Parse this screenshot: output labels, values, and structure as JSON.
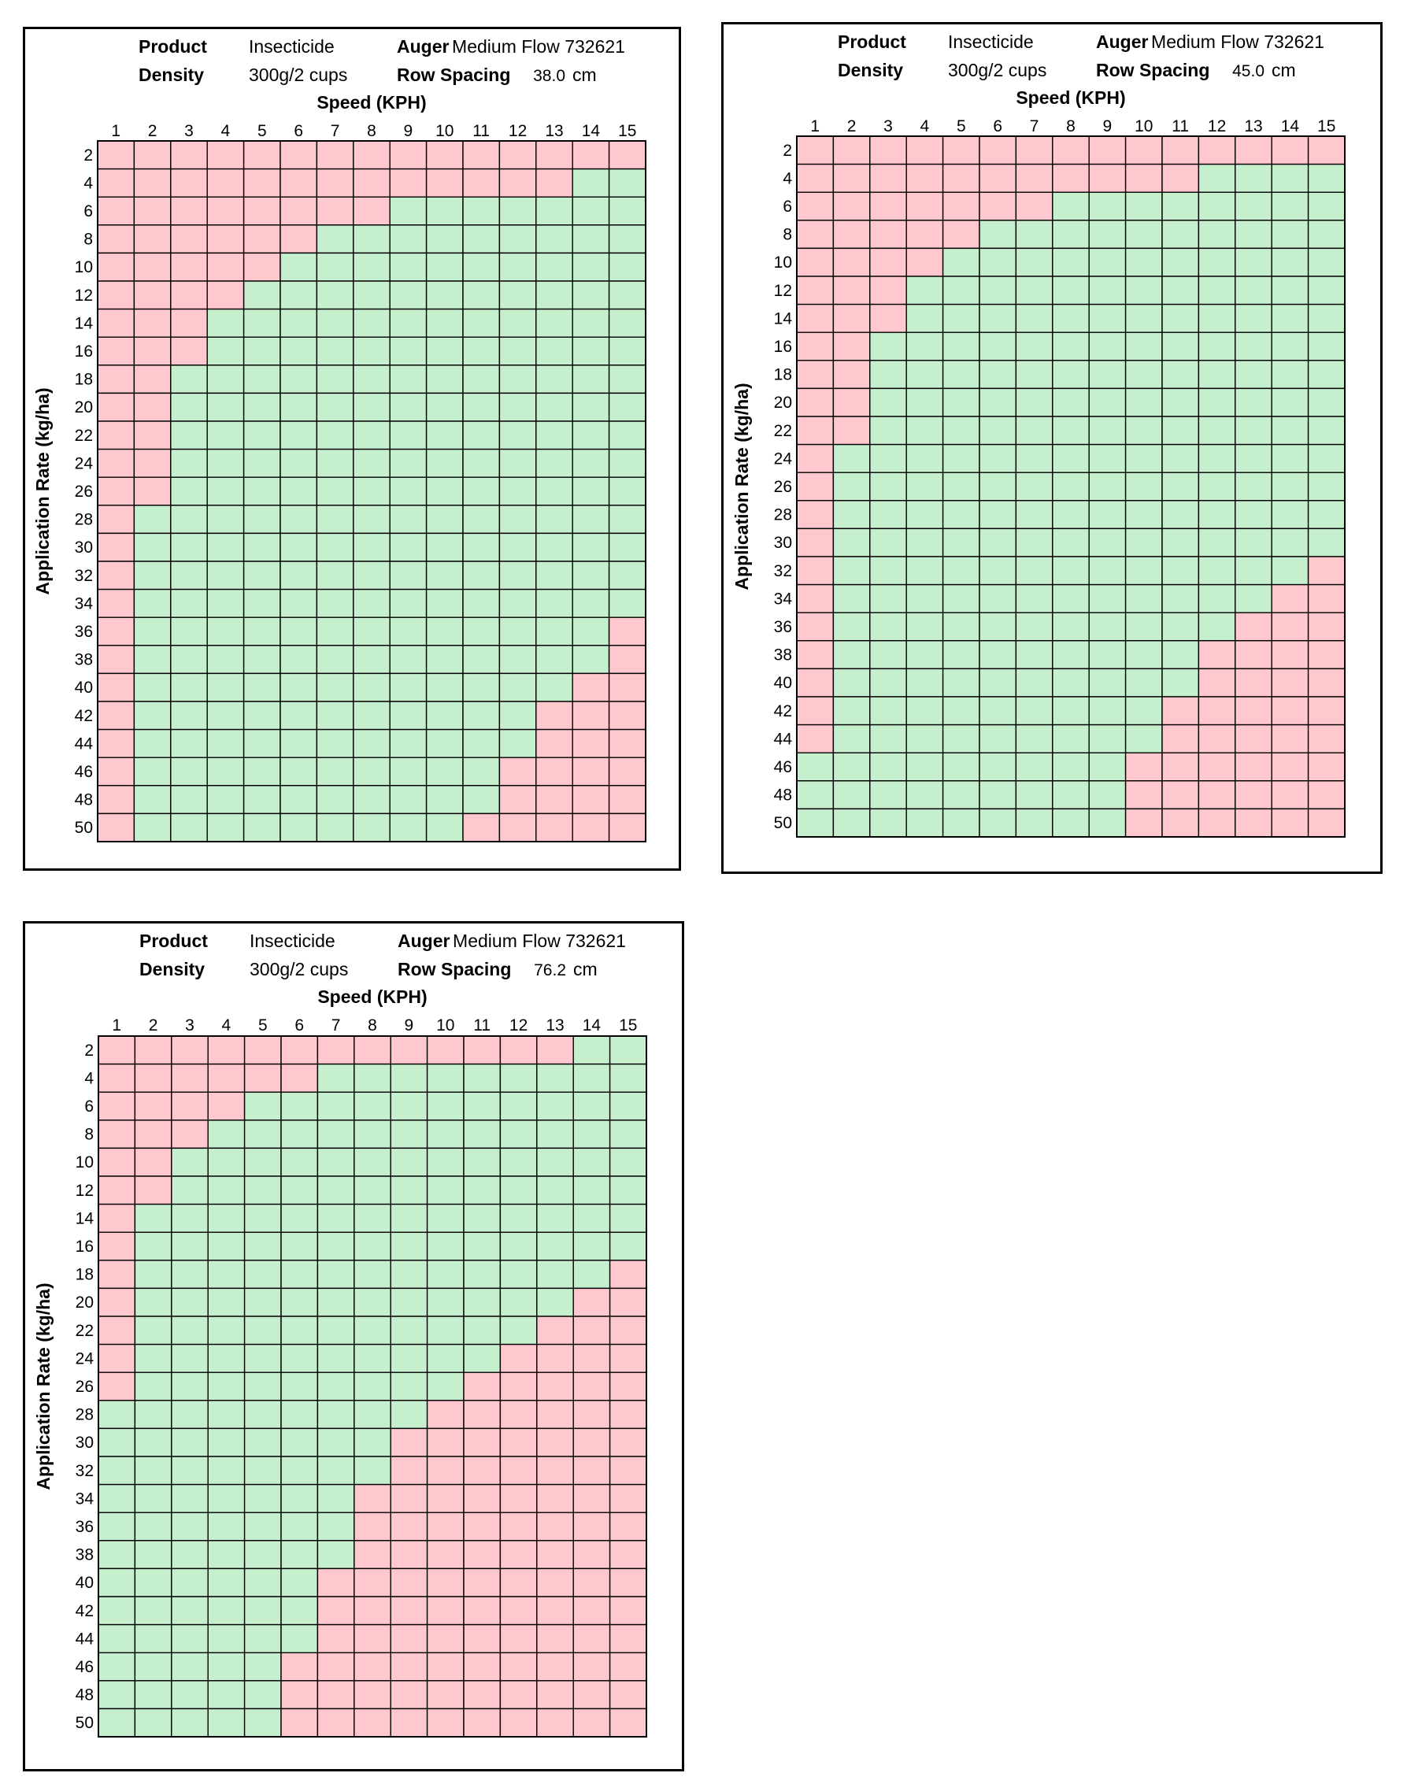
{
  "colors": {
    "green": "#c6efce",
    "red": "#ffc7ce",
    "grid": "#000000"
  },
  "legend_note": "",
  "chart_data": [
    {
      "type": "heatmap",
      "header": {
        "product_label": "Product",
        "product_value": "Insecticide",
        "density_label": "Density",
        "density_value": "300g/2 cups",
        "auger_label": "Auger",
        "auger_value": "Medium Flow 732621",
        "row_spacing_label": "Row Spacing",
        "row_spacing_value": "38.0",
        "row_spacing_unit": "cm"
      },
      "xlabel": "Speed (KPH)",
      "ylabel": "Application Rate (kg/ha)",
      "x": [
        1,
        2,
        3,
        4,
        5,
        6,
        7,
        8,
        9,
        10,
        11,
        12,
        13,
        14,
        15
      ],
      "y": [
        2,
        4,
        6,
        8,
        10,
        12,
        14,
        16,
        18,
        20,
        22,
        24,
        26,
        28,
        30,
        32,
        34,
        36,
        38,
        40,
        42,
        44,
        46,
        48,
        50
      ],
      "cell_status_key": "G = within range (green), R = out of range (red)",
      "rows": [
        "RRRRRRRRRRRRRRR",
        "RRRRRRRRRRRRRGG",
        "RRRRRRRRGGGGGGG",
        "RRRRRRGGGGGGGGG",
        "RRRRRGGGGGGGGGG",
        "RRRRGGGGGGGGGGG",
        "RRRGGGGGGGGGGGG",
        "RRRGGGGGGGGGGGG",
        "RRGGGGGGGGGGGGG",
        "RRGGGGGGGGGGGGG",
        "RRGGGGGGGGGGGGG",
        "RRGGGGGGGGGGGGG",
        "RRGGGGGGGGGGGGG",
        "RGGGGGGGGGGGGGG",
        "RGGGGGGGGGGGGGG",
        "RGGGGGGGGGGGGGG",
        "RGGGGGGGGGGGGGG",
        "RGGGGGGGGGGGGGR",
        "RGGGGGGGGGGGGGR",
        "RGGGGGGGGGGGGRR",
        "RGGGGGGGGGGGRRR",
        "RGGGGGGGGGGGRRR",
        "RGGGGGGGGGGRRRR",
        "RGGGGGGGGGGRRRR",
        "RGGGGGGGGGRRRRR"
      ]
    },
    {
      "type": "heatmap",
      "header": {
        "product_label": "Product",
        "product_value": "Insecticide",
        "density_label": "Density",
        "density_value": "300g/2 cups",
        "auger_label": "Auger",
        "auger_value": "Medium Flow 732621",
        "row_spacing_label": "Row Spacing",
        "row_spacing_value": "45.0",
        "row_spacing_unit": "cm"
      },
      "xlabel": "Speed (KPH)",
      "ylabel": "Application Rate (kg/ha)",
      "x": [
        1,
        2,
        3,
        4,
        5,
        6,
        7,
        8,
        9,
        10,
        11,
        12,
        13,
        14,
        15
      ],
      "y": [
        2,
        4,
        6,
        8,
        10,
        12,
        14,
        16,
        18,
        20,
        22,
        24,
        26,
        28,
        30,
        32,
        34,
        36,
        38,
        40,
        42,
        44,
        46,
        48,
        50
      ],
      "cell_status_key": "G = within range (green), R = out of range (red)",
      "rows": [
        "RRRRRRRRRRRRRRR",
        "RRRRRRRRRRRGGGG",
        "RRRRRRRGGGGGGGG",
        "RRRRRGGGGGGGGGG",
        "RRRRGGGGGGGGGGG",
        "RRRGGGGGGGGGGGG",
        "RRRGGGGGGGGGGGG",
        "RRGGGGGGGGGGGGG",
        "RRGGGGGGGGGGGGG",
        "RRGGGGGGGGGGGGG",
        "RRGGGGGGGGGGGGG",
        "RGGGGGGGGGGGGGG",
        "RGGGGGGGGGGGGGG",
        "RGGGGGGGGGGGGGG",
        "RGGGGGGGGGGGGGG",
        "RGGGGGGGGGGGGGR",
        "RGGGGGGGGGGGGRR",
        "RGGGGGGGGGGGRRR",
        "RGGGGGGGGGGRRRR",
        "RGGGGGGGGGGRRRR",
        "RGGGGGGGGGRRRRR",
        "RGGGGGGGGGRRRRR",
        "GGGGGGGGGRRRRRR",
        "GGGGGGGGGRRRRRR",
        "GGGGGGGGGRRRRRR"
      ]
    },
    {
      "type": "heatmap",
      "header": {
        "product_label": "Product",
        "product_value": "Insecticide",
        "density_label": "Density",
        "density_value": "300g/2 cups",
        "auger_label": "Auger",
        "auger_value": "Medium Flow 732621",
        "row_spacing_label": "Row Spacing",
        "row_spacing_value": "76.2",
        "row_spacing_unit": "cm"
      },
      "xlabel": "Speed (KPH)",
      "ylabel": "Application Rate (kg/ha)",
      "x": [
        1,
        2,
        3,
        4,
        5,
        6,
        7,
        8,
        9,
        10,
        11,
        12,
        13,
        14,
        15
      ],
      "y": [
        2,
        4,
        6,
        8,
        10,
        12,
        14,
        16,
        18,
        20,
        22,
        24,
        26,
        28,
        30,
        32,
        34,
        36,
        38,
        40,
        42,
        44,
        46,
        48,
        50
      ],
      "cell_status_key": "G = within range (green), R = out of range (red)",
      "rows": [
        "RRRRRRRRRRRRRGG",
        "RRRRRRGGGGGGGGG",
        "RRRRGGGGGGGGGGG",
        "RRRGGGGGGGGGGGG",
        "RRGGGGGGGGGGGGG",
        "RRGGGGGGGGGGGGG",
        "RGGGGGGGGGGGGGG",
        "RGGGGGGGGGGGGGG",
        "RGGGGGGGGGGGGGR",
        "RGGGGGGGGGGGGRR",
        "RGGGGGGGGGGGRRR",
        "RGGGGGGGGGGRRRR",
        "RGGGGGGGGGRRRRR",
        "GGGGGGGGGRRRRRR",
        "GGGGGGGGRRRRRRR",
        "GGGGGGGGRRRRRRR",
        "GGGGGGGRRRRRRRR",
        "GGGGGGGRRRRRRRR",
        "GGGGGGGRRRRRRRR",
        "GGGGGGRRRRRRRRR",
        "GGGGGGRRRRRRRRR",
        "GGGGGGRRRRRRRRR",
        "GGGGGRRRRRRRRRR",
        "GGGGGRRRRRRRRRR",
        "GGGGGRRRRRRRRRR"
      ]
    }
  ]
}
